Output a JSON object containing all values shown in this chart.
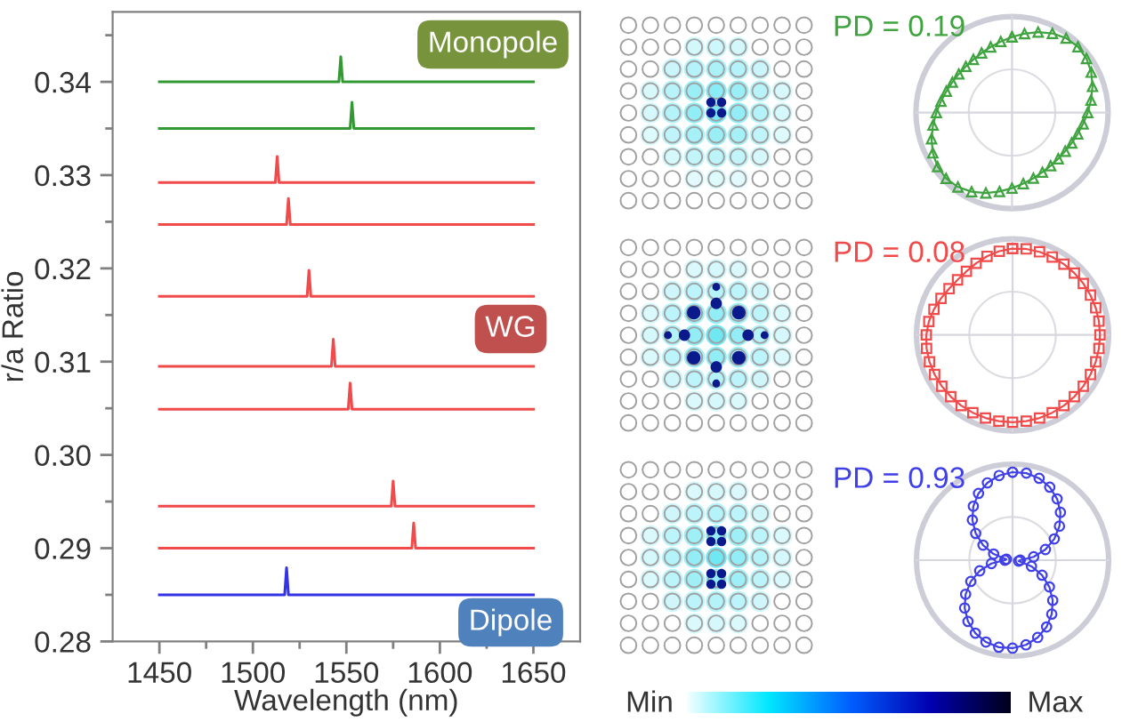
{
  "chart_data": [
    {
      "type": "line",
      "xlabel": "Wavelength (nm)",
      "ylabel": "r/a Ratio",
      "xlim": [
        1425,
        1675
      ],
      "ylim": [
        0.28,
        0.3475
      ],
      "xticks": [
        1450,
        {
          "value": 1475,
          "label": null
        },
        1500,
        {
          "value": 1525,
          "label": null
        },
        1550,
        {
          "value": 1575,
          "label": null
        },
        1600,
        {
          "value": 1625,
          "label": null
        },
        1650
      ],
      "yticks": [
        0.28,
        {
          "value": 0.285,
          "label": null
        },
        0.29,
        {
          "value": 0.295,
          "label": null
        },
        {
          "value": 0.3,
          "label": "0.30"
        },
        {
          "value": 0.305,
          "label": null
        },
        0.31,
        {
          "value": 0.315,
          "label": null
        },
        0.32,
        {
          "value": 0.325,
          "label": null
        },
        0.33,
        {
          "value": 0.335,
          "label": null
        },
        0.34,
        {
          "value": 0.345,
          "label": null
        }
      ],
      "series": [
        {
          "color": "#339933",
          "x": [
            1450,
            1546,
            1547,
            1548,
            1650
          ],
          "values": [
            0.34,
            0.34,
            0.3427,
            0.34,
            0.34
          ]
        },
        {
          "color": "#339933",
          "x": [
            1450,
            1552,
            1553,
            1554,
            1650
          ],
          "values": [
            0.335,
            0.335,
            0.3378,
            0.335,
            0.335
          ]
        },
        {
          "color": "#f04a4a",
          "x": [
            1450,
            1512,
            1513,
            1514,
            1650
          ],
          "values": [
            0.3292,
            0.3292,
            0.332,
            0.3292,
            0.3292
          ]
        },
        {
          "color": "#f04a4a",
          "x": [
            1450,
            1518,
            1519,
            1520,
            1650
          ],
          "values": [
            0.3247,
            0.3247,
            0.3275,
            0.3247,
            0.3247
          ]
        },
        {
          "color": "#f04a4a",
          "x": [
            1450,
            1529,
            1530,
            1531,
            1650
          ],
          "values": [
            0.317,
            0.317,
            0.3198,
            0.317,
            0.317
          ]
        },
        {
          "color": "#f04a4a",
          "x": [
            1450,
            1542,
            1543,
            1544,
            1650
          ],
          "values": [
            0.3095,
            0.3095,
            0.3124,
            0.3095,
            0.3095
          ]
        },
        {
          "color": "#f04a4a",
          "x": [
            1450,
            1551,
            1552,
            1553,
            1650
          ],
          "values": [
            0.3049,
            0.3049,
            0.3077,
            0.3049,
            0.3049
          ]
        },
        {
          "color": "#f04a4a",
          "x": [
            1450,
            1574,
            1575,
            1576,
            1650
          ],
          "values": [
            0.2945,
            0.2945,
            0.2972,
            0.2945,
            0.2945
          ]
        },
        {
          "color": "#f04a4a",
          "x": [
            1450,
            1585,
            1586,
            1587,
            1650
          ],
          "values": [
            0.29,
            0.29,
            0.2927,
            0.29,
            0.29
          ]
        },
        {
          "color": "#3333e6",
          "x": [
            1450,
            1517,
            1518,
            1519,
            1650
          ],
          "values": [
            0.285,
            0.285,
            0.2879,
            0.285,
            0.285
          ]
        }
      ],
      "annotations": [
        "Monopole",
        "WG",
        "Dipole"
      ]
    },
    {
      "type": "other",
      "annotations": [
        "Min",
        "Max"
      ]
    },
    {
      "type": "other",
      "annotations": [
        "PD = 0.19",
        "PD = 0.08",
        "PD = 0.93"
      ]
    }
  ]
}
